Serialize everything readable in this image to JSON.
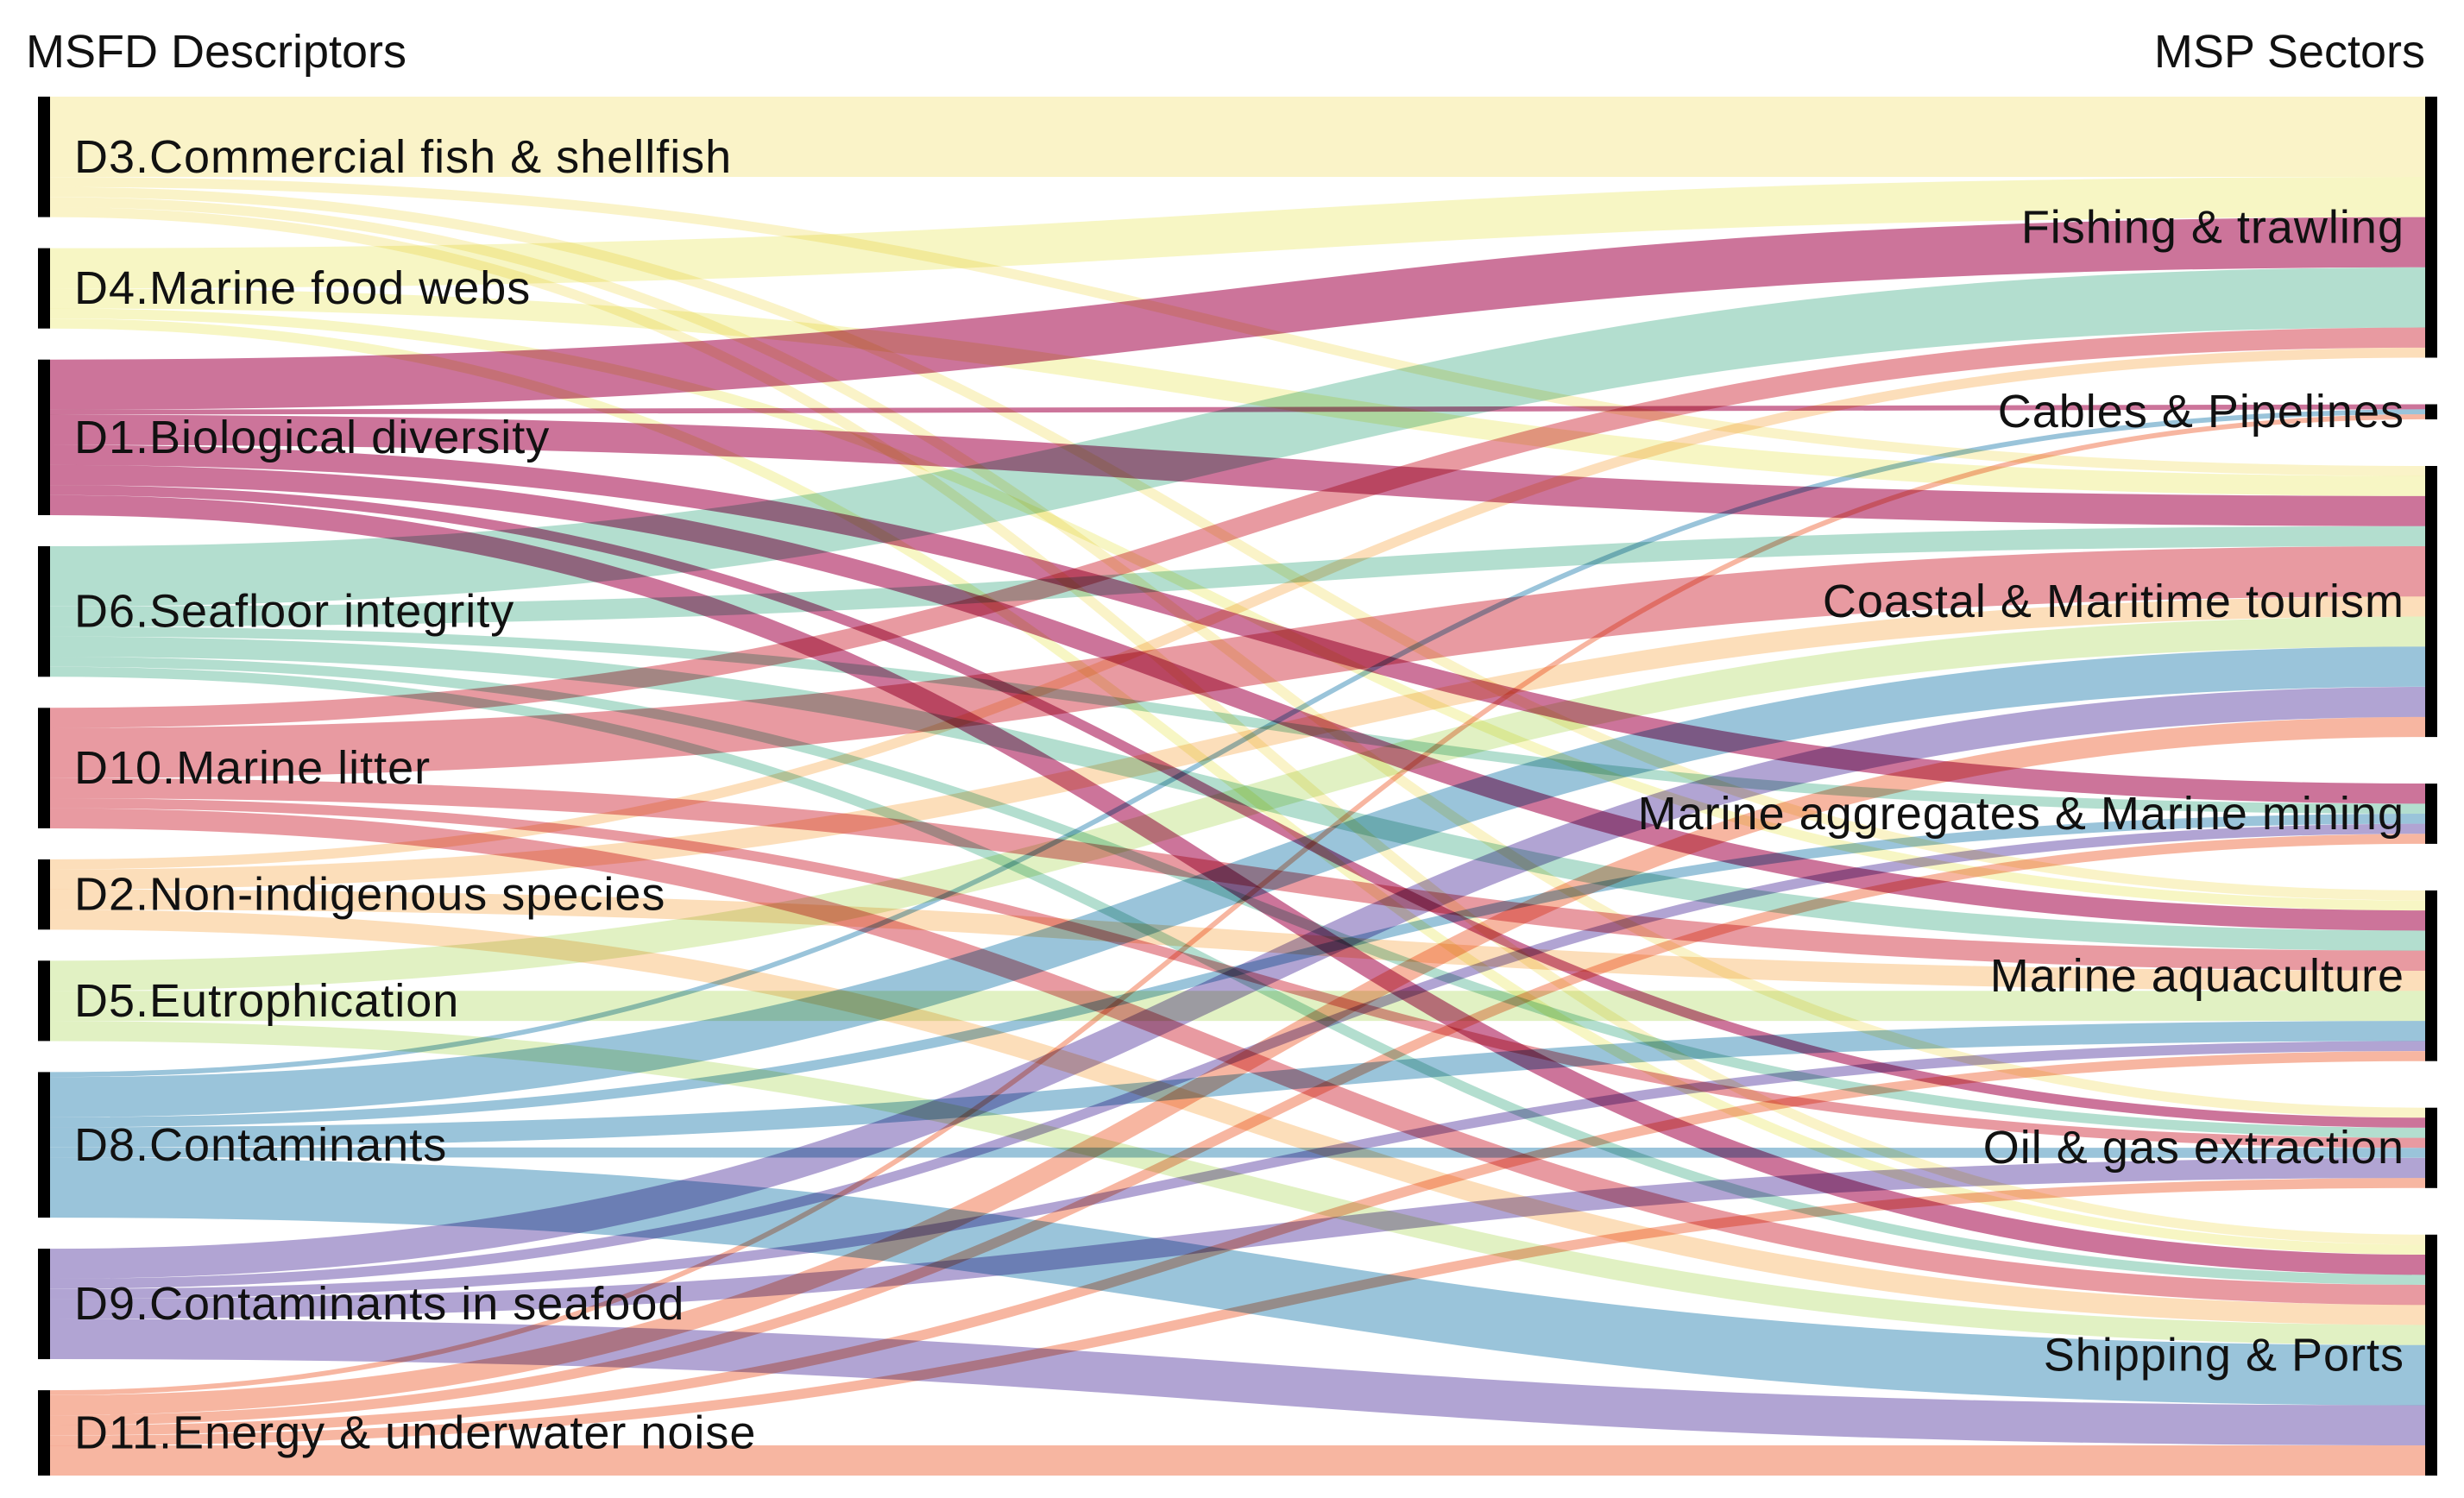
{
  "chart_data": {
    "type": "sankey",
    "title": "",
    "left_header": "MSFD Descriptors",
    "right_header": "MSP Sectors",
    "sources": [
      {
        "id": "D3",
        "label": "D3.Commercial fish & shellfish",
        "color": "#f8efb9"
      },
      {
        "id": "D4",
        "label": "D4.Marine food webs",
        "color": "#f5f4b4"
      },
      {
        "id": "D1",
        "label": "D1.Biological diversity",
        "color": "#be4d7e"
      },
      {
        "id": "D6",
        "label": "D6.Seafloor integrity",
        "color": "#9ed5c2"
      },
      {
        "id": "D10",
        "label": "D10.Marine litter",
        "color": "#e27d86"
      },
      {
        "id": "D2",
        "label": "D2.Non-indigenous species",
        "color": "#fbd5a6"
      },
      {
        "id": "D5",
        "label": "D5.Eutrophication",
        "color": "#d8edb2"
      },
      {
        "id": "D8",
        "label": "D8.Contaminants",
        "color": "#7eb3cf"
      },
      {
        "id": "D9",
        "label": "D9.Contaminants in seafood",
        "color": "#9b8bc6"
      },
      {
        "id": "D11",
        "label": "D11.Energy & underwater noise",
        "color": "#f5a287"
      }
    ],
    "targets": [
      {
        "id": "FT",
        "label": "Fishing & trawling"
      },
      {
        "id": "CP",
        "label": "Cables & Pipelines"
      },
      {
        "id": "CT",
        "label": "Coastal & Maritime tourism"
      },
      {
        "id": "MA",
        "label": "Marine aggregates & Marine mining"
      },
      {
        "id": "AQ",
        "label": "Marine aquaculture"
      },
      {
        "id": "OG",
        "label": "Oil & gas extraction"
      },
      {
        "id": "SP",
        "label": "Shipping & Ports"
      }
    ],
    "links": [
      {
        "source": "D3",
        "target": "FT",
        "value": 8
      },
      {
        "source": "D3",
        "target": "CT",
        "value": 1
      },
      {
        "source": "D3",
        "target": "AQ",
        "value": 1
      },
      {
        "source": "D3",
        "target": "OG",
        "value": 1
      },
      {
        "source": "D3",
        "target": "SP",
        "value": 1
      },
      {
        "source": "D4",
        "target": "FT",
        "value": 4
      },
      {
        "source": "D4",
        "target": "CT",
        "value": 2
      },
      {
        "source": "D4",
        "target": "AQ",
        "value": 1
      },
      {
        "source": "D4",
        "target": "SP",
        "value": 1
      },
      {
        "source": "D1",
        "target": "FT",
        "value": 5
      },
      {
        "source": "D1",
        "target": "CP",
        "value": 0.5
      },
      {
        "source": "D1",
        "target": "CT",
        "value": 3
      },
      {
        "source": "D1",
        "target": "MA",
        "value": 2
      },
      {
        "source": "D1",
        "target": "AQ",
        "value": 2
      },
      {
        "source": "D1",
        "target": "OG",
        "value": 1
      },
      {
        "source": "D1",
        "target": "SP",
        "value": 2
      },
      {
        "source": "D6",
        "target": "FT",
        "value": 6
      },
      {
        "source": "D6",
        "target": "CT",
        "value": 2
      },
      {
        "source": "D6",
        "target": "MA",
        "value": 1
      },
      {
        "source": "D6",
        "target": "AQ",
        "value": 2
      },
      {
        "source": "D6",
        "target": "OG",
        "value": 1
      },
      {
        "source": "D6",
        "target": "SP",
        "value": 1
      },
      {
        "source": "D10",
        "target": "FT",
        "value": 2
      },
      {
        "source": "D10",
        "target": "CT",
        "value": 5
      },
      {
        "source": "D10",
        "target": "AQ",
        "value": 2
      },
      {
        "source": "D10",
        "target": "OG",
        "value": 1
      },
      {
        "source": "D10",
        "target": "SP",
        "value": 2
      },
      {
        "source": "D2",
        "target": "FT",
        "value": 1
      },
      {
        "source": "D2",
        "target": "CT",
        "value": 2
      },
      {
        "source": "D2",
        "target": "AQ",
        "value": 2
      },
      {
        "source": "D2",
        "target": "SP",
        "value": 2
      },
      {
        "source": "D5",
        "target": "CT",
        "value": 3
      },
      {
        "source": "D5",
        "target": "AQ",
        "value": 3
      },
      {
        "source": "D5",
        "target": "SP",
        "value": 2
      },
      {
        "source": "D8",
        "target": "CP",
        "value": 0.5
      },
      {
        "source": "D8",
        "target": "CT",
        "value": 4
      },
      {
        "source": "D8",
        "target": "MA",
        "value": 1
      },
      {
        "source": "D8",
        "target": "AQ",
        "value": 2
      },
      {
        "source": "D8",
        "target": "OG",
        "value": 1
      },
      {
        "source": "D8",
        "target": "SP",
        "value": 6
      },
      {
        "source": "D9",
        "target": "CT",
        "value": 3
      },
      {
        "source": "D9",
        "target": "MA",
        "value": 1
      },
      {
        "source": "D9",
        "target": "AQ",
        "value": 1
      },
      {
        "source": "D9",
        "target": "OG",
        "value": 2
      },
      {
        "source": "D9",
        "target": "SP",
        "value": 4
      },
      {
        "source": "D11",
        "target": "CP",
        "value": 0.5
      },
      {
        "source": "D11",
        "target": "CT",
        "value": 2
      },
      {
        "source": "D11",
        "target": "MA",
        "value": 1
      },
      {
        "source": "D11",
        "target": "AQ",
        "value": 1
      },
      {
        "source": "D11",
        "target": "OG",
        "value": 1
      },
      {
        "source": "D11",
        "target": "SP",
        "value": 3
      }
    ]
  }
}
